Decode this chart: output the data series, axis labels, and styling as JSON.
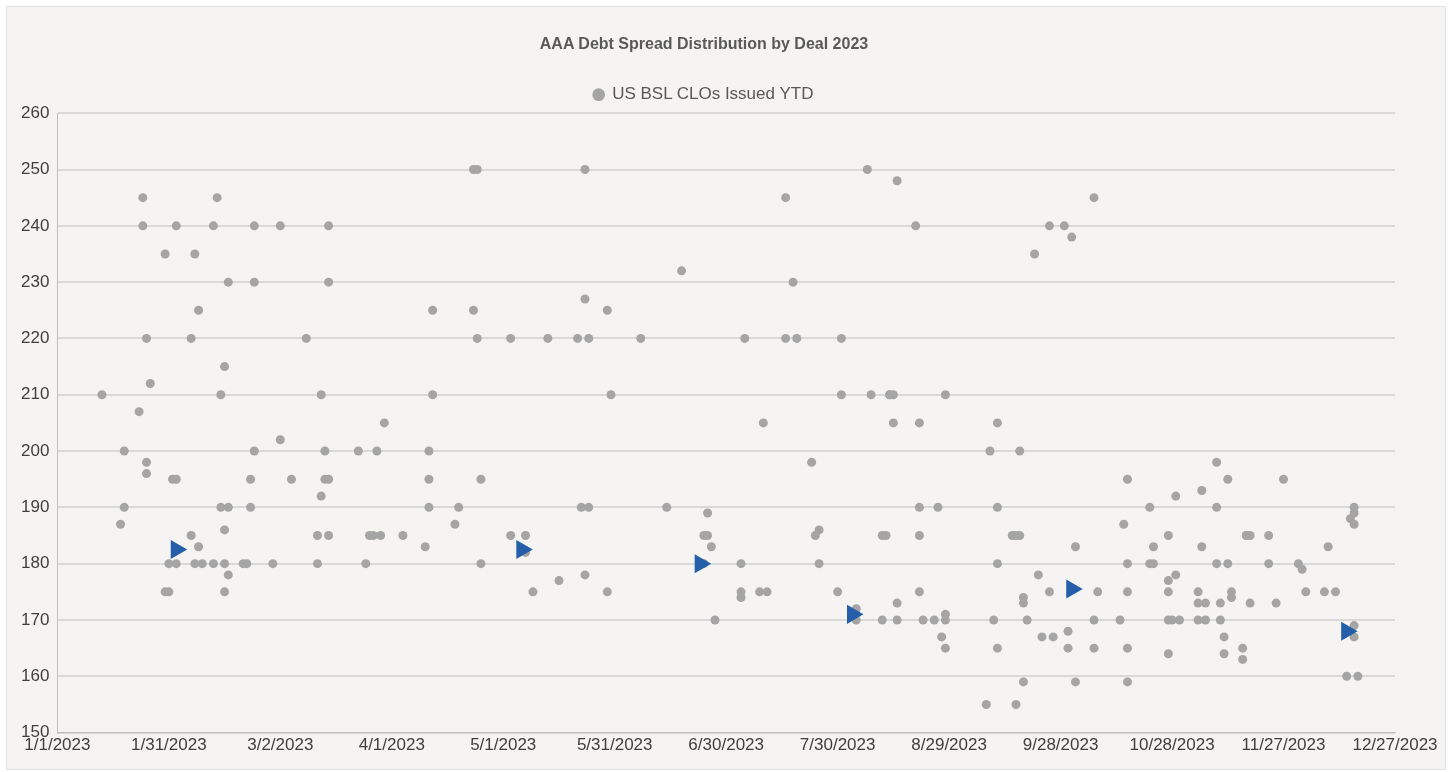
{
  "chart_data": {
    "type": "scatter",
    "title": "AAA Debt Spread Distribution by Deal 2023",
    "legend": "top",
    "grid": "y",
    "xlim": [
      "2023-01-01",
      "2023-12-27"
    ],
    "xticks": [
      {
        "value": "2023-01-01",
        "label": "1/1/2023"
      },
      {
        "value": "2023-01-31",
        "label": "1/31/2023"
      },
      {
        "value": "2023-03-02",
        "label": "3/2/2023"
      },
      {
        "value": "2023-04-01",
        "label": "4/1/2023"
      },
      {
        "value": "2023-05-01",
        "label": "5/1/2023"
      },
      {
        "value": "2023-05-31",
        "label": "5/31/2023"
      },
      {
        "value": "2023-06-30",
        "label": "6/30/2023"
      },
      {
        "value": "2023-07-30",
        "label": "7/30/2023"
      },
      {
        "value": "2023-08-29",
        "label": "8/29/2023"
      },
      {
        "value": "2023-09-28",
        "label": "9/28/2023"
      },
      {
        "value": "2023-10-28",
        "label": "10/28/2023"
      },
      {
        "value": "2023-11-27",
        "label": "11/27/2023"
      },
      {
        "value": "2023-12-27",
        "label": "12/27/2023"
      }
    ],
    "ylim": [
      150,
      260
    ],
    "yticks": [
      150,
      160,
      170,
      180,
      190,
      200,
      210,
      220,
      230,
      240,
      250,
      260
    ],
    "series": [
      {
        "name": "US BSL CLOs Issued YTD",
        "color": "#a5a5a5",
        "marker": "circle",
        "x": [
          "2023-01-13",
          "2023-01-18",
          "2023-01-19",
          "2023-01-19",
          "2023-01-23",
          "2023-01-24",
          "2023-01-24",
          "2023-01-25",
          "2023-01-25",
          "2023-01-25",
          "2023-01-26",
          "2023-01-30",
          "2023-01-30",
          "2023-01-31",
          "2023-01-31",
          "2023-02-01",
          "2023-02-02",
          "2023-02-02",
          "2023-02-02",
          "2023-02-06",
          "2023-02-06",
          "2023-02-07",
          "2023-02-07",
          "2023-02-08",
          "2023-02-08",
          "2023-02-09",
          "2023-02-12",
          "2023-02-13",
          "2023-02-12",
          "2023-02-14",
          "2023-02-14",
          "2023-02-15",
          "2023-02-15",
          "2023-02-15",
          "2023-02-15",
          "2023-02-16",
          "2023-02-16",
          "2023-02-16",
          "2023-02-20",
          "2023-02-21",
          "2023-02-22",
          "2023-02-22",
          "2023-02-23",
          "2023-02-23",
          "2023-02-23",
          "2023-02-28",
          "2023-03-02",
          "2023-03-02",
          "2023-03-05",
          "2023-03-09",
          "2023-03-12",
          "2023-03-12",
          "2023-03-13",
          "2023-03-13",
          "2023-03-14",
          "2023-03-14",
          "2023-03-15",
          "2023-03-15",
          "2023-03-15",
          "2023-03-15",
          "2023-03-23",
          "2023-03-25",
          "2023-03-26",
          "2023-03-27",
          "2023-03-28",
          "2023-03-29",
          "2023-03-30",
          "2023-04-04",
          "2023-04-10",
          "2023-04-11",
          "2023-04-11",
          "2023-04-11",
          "2023-04-12",
          "2023-04-12",
          "2023-04-18",
          "2023-04-19",
          "2023-04-23",
          "2023-04-23",
          "2023-04-24",
          "2023-04-24",
          "2023-04-25",
          "2023-04-25",
          "2023-05-03",
          "2023-05-03",
          "2023-05-07",
          "2023-05-07",
          "2023-05-09",
          "2023-05-13",
          "2023-05-16",
          "2023-05-21",
          "2023-05-23",
          "2023-05-23",
          "2023-05-22",
          "2023-05-24",
          "2023-05-23",
          "2023-05-24",
          "2023-05-29",
          "2023-05-29",
          "2023-05-30",
          "2023-06-07",
          "2023-06-14",
          "2023-06-18",
          "2023-06-24",
          "2023-06-25",
          "2023-06-25",
          "2023-06-26",
          "2023-06-24",
          "2023-06-27",
          "2023-07-04",
          "2023-07-04",
          "2023-07-04",
          "2023-07-05",
          "2023-07-09",
          "2023-07-10",
          "2023-07-11",
          "2023-07-16",
          "2023-07-16",
          "2023-07-18",
          "2023-07-19",
          "2023-07-23",
          "2023-07-24",
          "2023-07-25",
          "2023-07-25",
          "2023-07-30",
          "2023-07-31",
          "2023-07-31",
          "2023-08-04",
          "2023-08-04",
          "2023-08-07",
          "2023-08-08",
          "2023-08-11",
          "2023-08-11",
          "2023-08-12",
          "2023-08-13",
          "2023-08-13",
          "2023-08-14",
          "2023-08-14",
          "2023-08-15",
          "2023-08-15",
          "2023-08-15",
          "2023-08-20",
          "2023-08-21",
          "2023-08-21",
          "2023-08-21",
          "2023-08-21",
          "2023-08-22",
          "2023-08-25",
          "2023-08-26",
          "2023-08-27",
          "2023-08-28",
          "2023-08-28",
          "2023-08-28",
          "2023-08-28",
          "2023-09-08",
          "2023-09-09",
          "2023-09-10",
          "2023-09-11",
          "2023-09-11",
          "2023-09-11",
          "2023-09-11",
          "2023-09-15",
          "2023-09-16",
          "2023-09-16",
          "2023-09-17",
          "2023-09-17",
          "2023-09-18",
          "2023-09-18",
          "2023-09-18",
          "2023-09-19",
          "2023-09-21",
          "2023-09-22",
          "2023-09-23",
          "2023-09-25",
          "2023-09-25",
          "2023-09-26",
          "2023-09-29",
          "2023-09-30",
          "2023-09-30",
          "2023-10-01",
          "2023-10-02",
          "2023-10-02",
          "2023-10-07",
          "2023-10-07",
          "2023-10-07",
          "2023-10-08",
          "2023-10-14",
          "2023-10-15",
          "2023-10-16",
          "2023-10-16",
          "2023-10-16",
          "2023-10-16",
          "2023-10-16",
          "2023-10-22",
          "2023-10-22",
          "2023-10-23",
          "2023-10-23",
          "2023-10-27",
          "2023-10-27",
          "2023-10-27",
          "2023-10-27",
          "2023-10-27",
          "2023-10-28",
          "2023-10-29",
          "2023-10-29",
          "2023-10-30",
          "2023-11-04",
          "2023-11-04",
          "2023-11-04",
          "2023-11-05",
          "2023-11-05",
          "2023-11-06",
          "2023-11-06",
          "2023-11-09",
          "2023-11-09",
          "2023-11-09",
          "2023-11-10",
          "2023-11-10",
          "2023-11-11",
          "2023-11-11",
          "2023-11-12",
          "2023-11-12",
          "2023-11-13",
          "2023-11-13",
          "2023-11-16",
          "2023-11-16",
          "2023-11-17",
          "2023-11-17",
          "2023-11-18",
          "2023-11-18",
          "2023-11-23",
          "2023-11-23",
          "2023-11-25",
          "2023-11-27",
          "2023-12-01",
          "2023-12-02",
          "2023-12-03",
          "2023-12-08",
          "2023-12-09",
          "2023-12-11",
          "2023-12-14",
          "2023-12-15",
          "2023-12-16",
          "2023-12-16",
          "2023-12-16",
          "2023-12-16",
          "2023-12-16",
          "2023-12-17"
        ],
        "values": [
          210,
          187,
          200,
          190,
          207,
          245,
          240,
          220,
          198,
          196,
          212,
          235,
          175,
          175,
          180,
          195,
          195,
          180,
          240,
          185,
          220,
          235,
          180,
          225,
          183,
          180,
          240,
          245,
          180,
          210,
          190,
          180,
          215,
          186,
          175,
          190,
          178,
          230,
          180,
          180,
          195,
          190,
          200,
          230,
          240,
          180,
          240,
          202,
          195,
          220,
          185,
          180,
          210,
          192,
          200,
          195,
          195,
          230,
          240,
          185,
          200,
          180,
          185,
          185,
          200,
          185,
          205,
          185,
          183,
          200,
          195,
          190,
          225,
          210,
          187,
          190,
          225,
          250,
          250,
          220,
          195,
          180,
          220,
          185,
          185,
          182,
          175,
          220,
          177,
          220,
          227,
          250,
          190,
          190,
          178,
          220,
          225,
          175,
          210,
          220,
          190,
          232,
          185,
          189,
          185,
          183,
          180,
          170,
          180,
          175,
          174,
          220,
          175,
          205,
          175,
          220,
          245,
          230,
          220,
          198,
          185,
          186,
          180,
          175,
          220,
          210,
          170,
          172,
          250,
          210,
          170,
          185,
          185,
          210,
          210,
          210,
          205,
          248,
          173,
          170,
          240,
          205,
          185,
          175,
          190,
          170,
          170,
          190,
          167,
          171,
          170,
          165,
          210,
          155,
          200,
          170,
          165,
          205,
          190,
          180,
          185,
          155,
          185,
          185,
          200,
          174,
          173,
          159,
          170,
          235,
          178,
          167,
          175,
          240,
          167,
          240,
          165,
          168,
          238,
          159,
          183,
          170,
          165,
          245,
          175,
          170,
          187,
          159,
          195,
          180,
          175,
          165,
          190,
          180,
          180,
          183,
          170,
          185,
          177,
          175,
          164,
          170,
          192,
          178,
          170,
          175,
          170,
          173,
          193,
          183,
          173,
          170,
          198,
          190,
          180,
          170,
          173,
          167,
          164,
          180,
          195,
          175,
          174,
          165,
          163,
          185,
          185,
          173,
          185,
          185,
          180,
          173,
          195,
          180,
          179,
          175,
          175,
          183,
          175,
          160,
          188,
          187,
          189,
          190,
          169,
          167,
          160
        ]
      },
      {
        "color": "#255ea9",
        "marker": "triangle",
        "x": [
          "2023-02-02",
          "2023-05-06",
          "2023-06-23",
          "2023-08-03",
          "2023-10-01",
          "2023-12-14"
        ],
        "values": [
          182.5,
          182.5,
          180,
          171,
          175.5,
          168
        ]
      }
    ]
  }
}
